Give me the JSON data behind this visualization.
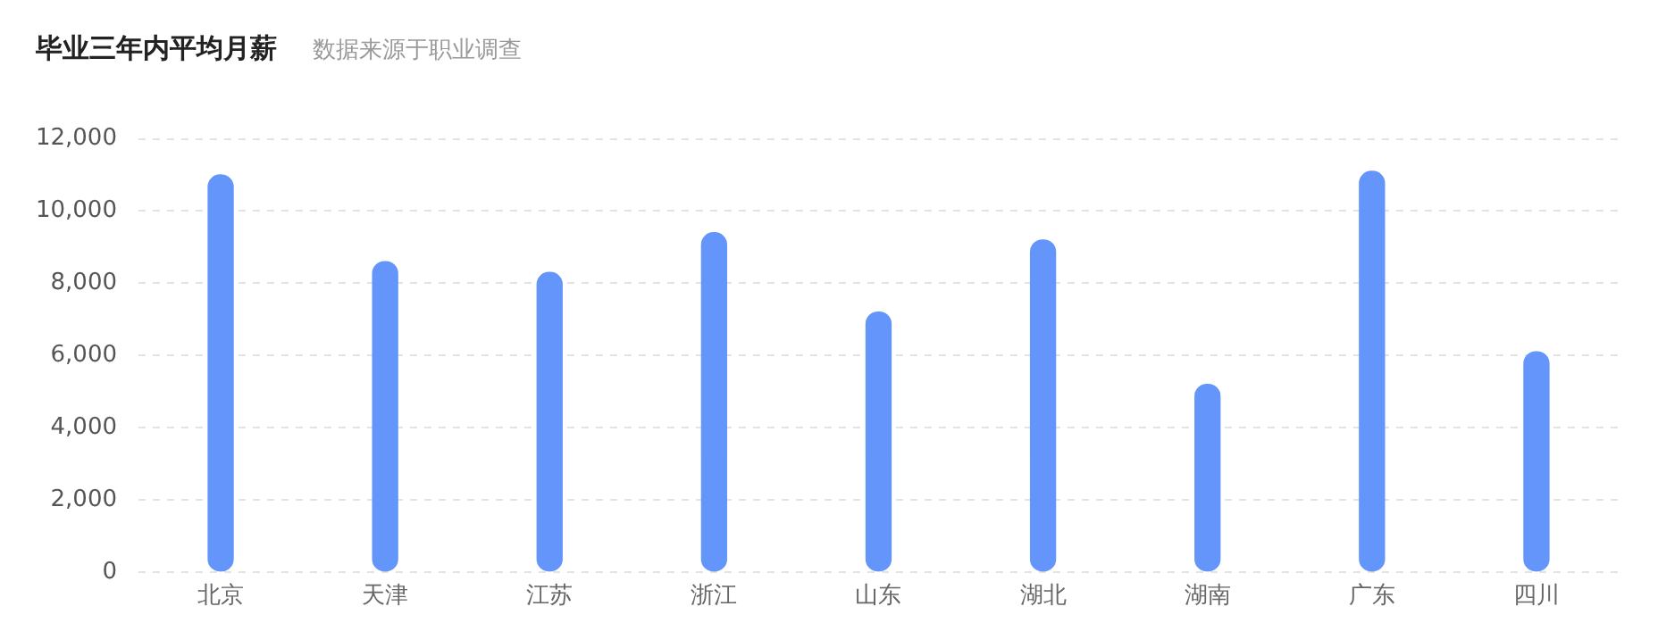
{
  "chart_data": {
    "type": "bar",
    "title": "毕业三年内平均月薪",
    "subtitle": "数据来源于职业调查",
    "categories": [
      "北京",
      "天津",
      "江苏",
      "浙江",
      "山东",
      "湖北",
      "湖南",
      "广东",
      "四川"
    ],
    "values": [
      11000,
      8600,
      8300,
      9400,
      7200,
      9200,
      5200,
      11100,
      6100
    ],
    "color": "#6395fa",
    "ylim": [
      0,
      12000
    ],
    "yticks": [
      {
        "value": 0,
        "label": "0"
      },
      {
        "value": 2000,
        "label": "2,000"
      },
      {
        "value": 4000,
        "label": "4,000"
      },
      {
        "value": 6000,
        "label": "6,000"
      },
      {
        "value": 8000,
        "label": "8,000"
      },
      {
        "value": 10000,
        "label": "10,000"
      },
      {
        "value": 12000,
        "label": "12,000"
      }
    ],
    "grid": "y",
    "legend": false
  }
}
